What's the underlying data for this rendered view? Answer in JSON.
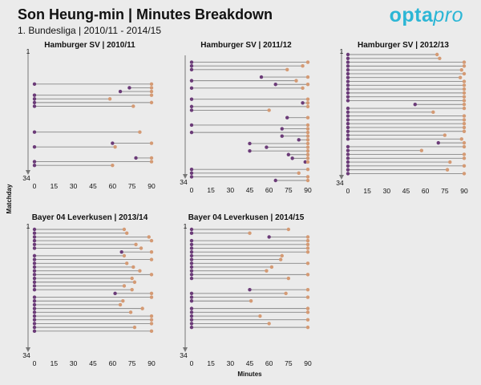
{
  "header": {
    "title": "Son Heung-min | Minutes Breakdown",
    "subtitle": "1. Bundesliga | 2010/11 - 2014/15",
    "brand_opta": "opta",
    "brand_pro": "pro"
  },
  "colors": {
    "background": "#ebebeb",
    "start_dot": "#6b3b78",
    "end_dot": "#d49a74",
    "line": "#888888",
    "brand": "#2cb6d5"
  },
  "chart_data": [
    {
      "type": "dumbbell",
      "title": "Hamburger SV | 2010/11",
      "xlabel": "",
      "ylabel": "Matchday",
      "xlim": [
        0,
        90
      ],
      "xticks": [
        0,
        15,
        30,
        45,
        60,
        75,
        90
      ],
      "ylim": [
        1,
        34
      ],
      "ytick_labels": [
        "1",
        "34"
      ],
      "series": [
        {
          "matchday": 9,
          "start": 0,
          "end": 90
        },
        {
          "matchday": 10,
          "start": 73,
          "end": 90
        },
        {
          "matchday": 11,
          "start": 66,
          "end": 90
        },
        {
          "matchday": 12,
          "start": 0,
          "end": 90
        },
        {
          "matchday": 13,
          "start": 0,
          "end": 58
        },
        {
          "matchday": 14,
          "start": 0,
          "end": 90
        },
        {
          "matchday": 15,
          "start": 0,
          "end": 76
        },
        {
          "matchday": 22,
          "start": 0,
          "end": 81
        },
        {
          "matchday": 25,
          "start": 60,
          "end": 90
        },
        {
          "matchday": 26,
          "start": 0,
          "end": 62
        },
        {
          "matchday": 29,
          "start": 78,
          "end": 90
        },
        {
          "matchday": 30,
          "start": 0,
          "end": 90
        },
        {
          "matchday": 31,
          "start": 0,
          "end": 60
        }
      ]
    },
    {
      "type": "dumbbell",
      "title": "Hamburger SV | 2011/12",
      "xlabel": "",
      "ylabel": "",
      "xlim": [
        0,
        90
      ],
      "xticks": [
        0,
        15,
        30,
        45,
        60,
        75,
        90
      ],
      "ylim": [
        1,
        34
      ],
      "ytick_labels": [
        "34"
      ],
      "series": [
        {
          "matchday": 2,
          "start": 0,
          "end": 90
        },
        {
          "matchday": 3,
          "start": 0,
          "end": 86
        },
        {
          "matchday": 4,
          "start": 0,
          "end": 74
        },
        {
          "matchday": 6,
          "start": 54,
          "end": 90
        },
        {
          "matchday": 7,
          "start": 0,
          "end": 81
        },
        {
          "matchday": 8,
          "start": 65,
          "end": 90
        },
        {
          "matchday": 9,
          "start": 0,
          "end": 86
        },
        {
          "matchday": 12,
          "start": 0,
          "end": 90
        },
        {
          "matchday": 13,
          "start": 86,
          "end": 90
        },
        {
          "matchday": 14,
          "start": 0,
          "end": 90
        },
        {
          "matchday": 15,
          "start": 0,
          "end": 60
        },
        {
          "matchday": 17,
          "start": 74,
          "end": 90
        },
        {
          "matchday": 19,
          "start": 0,
          "end": 90
        },
        {
          "matchday": 20,
          "start": 70,
          "end": 90
        },
        {
          "matchday": 21,
          "start": 0,
          "end": 90
        },
        {
          "matchday": 22,
          "start": 70,
          "end": 90
        },
        {
          "matchday": 23,
          "start": 83,
          "end": 90
        },
        {
          "matchday": 24,
          "start": 45,
          "end": 90
        },
        {
          "matchday": 25,
          "start": 58,
          "end": 90
        },
        {
          "matchday": 26,
          "start": 45,
          "end": 90
        },
        {
          "matchday": 27,
          "start": 75,
          "end": 90
        },
        {
          "matchday": 28,
          "start": 78,
          "end": 90
        },
        {
          "matchday": 29,
          "start": 88,
          "end": 90
        },
        {
          "matchday": 31,
          "start": 0,
          "end": 90
        },
        {
          "matchday": 32,
          "start": 0,
          "end": 83
        },
        {
          "matchday": 33,
          "start": 0,
          "end": 90
        },
        {
          "matchday": 34,
          "start": 65,
          "end": 90
        }
      ]
    },
    {
      "type": "dumbbell",
      "title": "Hamburger SV | 2012/13",
      "xlabel": "",
      "ylabel": "",
      "xlim": [
        0,
        90
      ],
      "xticks": [
        0,
        15,
        30,
        45,
        60,
        75,
        90
      ],
      "ylim": [
        1,
        34
      ],
      "ytick_labels": [
        "1",
        "34"
      ],
      "series": [
        {
          "matchday": 1,
          "start": 0,
          "end": 69
        },
        {
          "matchday": 2,
          "start": 0,
          "end": 71
        },
        {
          "matchday": 3,
          "start": 0,
          "end": 90
        },
        {
          "matchday": 4,
          "start": 0,
          "end": 90
        },
        {
          "matchday": 5,
          "start": 0,
          "end": 88
        },
        {
          "matchday": 6,
          "start": 0,
          "end": 90
        },
        {
          "matchday": 7,
          "start": 0,
          "end": 87
        },
        {
          "matchday": 8,
          "start": 0,
          "end": 90
        },
        {
          "matchday": 9,
          "start": 0,
          "end": 90
        },
        {
          "matchday": 10,
          "start": 0,
          "end": 90
        },
        {
          "matchday": 11,
          "start": 0,
          "end": 90
        },
        {
          "matchday": 12,
          "start": 0,
          "end": 90
        },
        {
          "matchday": 13,
          "start": 0,
          "end": 90
        },
        {
          "matchday": 14,
          "start": 52,
          "end": 90
        },
        {
          "matchday": 15,
          "start": 0,
          "end": 90
        },
        {
          "matchday": 16,
          "start": 0,
          "end": 66
        },
        {
          "matchday": 17,
          "start": 0,
          "end": 90
        },
        {
          "matchday": 18,
          "start": 0,
          "end": 90
        },
        {
          "matchday": 19,
          "start": 0,
          "end": 90
        },
        {
          "matchday": 20,
          "start": 0,
          "end": 90
        },
        {
          "matchday": 21,
          "start": 0,
          "end": 90
        },
        {
          "matchday": 22,
          "start": 0,
          "end": 75
        },
        {
          "matchday": 23,
          "start": 0,
          "end": 88
        },
        {
          "matchday": 24,
          "start": 70,
          "end": 90
        },
        {
          "matchday": 25,
          "start": 0,
          "end": 90
        },
        {
          "matchday": 26,
          "start": 0,
          "end": 57
        },
        {
          "matchday": 27,
          "start": 0,
          "end": 90
        },
        {
          "matchday": 28,
          "start": 0,
          "end": 90
        },
        {
          "matchday": 29,
          "start": 0,
          "end": 79
        },
        {
          "matchday": 30,
          "start": 0,
          "end": 90
        },
        {
          "matchday": 31,
          "start": 0,
          "end": 77
        },
        {
          "matchday": 32,
          "start": 0,
          "end": 90
        }
      ]
    },
    {
      "type": "dumbbell",
      "title": "Bayer 04 Leverkusen | 2013/14",
      "xlabel": "",
      "ylabel": "",
      "xlim": [
        0,
        90
      ],
      "xticks": [
        0,
        15,
        30,
        45,
        60,
        75,
        90
      ],
      "ylim": [
        1,
        34
      ],
      "ytick_labels": [
        "1",
        "34"
      ],
      "series": [
        {
          "matchday": 1,
          "start": 0,
          "end": 69
        },
        {
          "matchday": 2,
          "start": 0,
          "end": 71
        },
        {
          "matchday": 3,
          "start": 0,
          "end": 88
        },
        {
          "matchday": 4,
          "start": 0,
          "end": 90
        },
        {
          "matchday": 5,
          "start": 0,
          "end": 78
        },
        {
          "matchday": 6,
          "start": 0,
          "end": 82
        },
        {
          "matchday": 7,
          "start": 67,
          "end": 90
        },
        {
          "matchday": 8,
          "start": 0,
          "end": 69
        },
        {
          "matchday": 9,
          "start": 0,
          "end": 90
        },
        {
          "matchday": 10,
          "start": 0,
          "end": 71
        },
        {
          "matchday": 11,
          "start": 0,
          "end": 76
        },
        {
          "matchday": 12,
          "start": 0,
          "end": 81
        },
        {
          "matchday": 13,
          "start": 0,
          "end": 90
        },
        {
          "matchday": 14,
          "start": 0,
          "end": 75
        },
        {
          "matchday": 15,
          "start": 0,
          "end": 77
        },
        {
          "matchday": 16,
          "start": 0,
          "end": 69
        },
        {
          "matchday": 17,
          "start": 0,
          "end": 75
        },
        {
          "matchday": 18,
          "start": 62,
          "end": 90
        },
        {
          "matchday": 19,
          "start": 0,
          "end": 90
        },
        {
          "matchday": 20,
          "start": 0,
          "end": 68
        },
        {
          "matchday": 21,
          "start": 0,
          "end": 66
        },
        {
          "matchday": 22,
          "start": 0,
          "end": 83
        },
        {
          "matchday": 23,
          "start": 0,
          "end": 74
        },
        {
          "matchday": 24,
          "start": 0,
          "end": 90
        },
        {
          "matchday": 25,
          "start": 0,
          "end": 90
        },
        {
          "matchday": 26,
          "start": 0,
          "end": 90
        },
        {
          "matchday": 27,
          "start": 0,
          "end": 77
        },
        {
          "matchday": 28,
          "start": 0,
          "end": 90
        }
      ]
    },
    {
      "type": "dumbbell",
      "title": "Bayer 04 Leverkusen | 2014/15",
      "xlabel": "Minutes",
      "ylabel": "",
      "xlim": [
        0,
        90
      ],
      "xticks": [
        0,
        15,
        30,
        45,
        60,
        75,
        90
      ],
      "ylim": [
        1,
        34
      ],
      "ytick_labels": [
        "1",
        "34"
      ],
      "series": [
        {
          "matchday": 1,
          "start": 0,
          "end": 75
        },
        {
          "matchday": 2,
          "start": 0,
          "end": 45
        },
        {
          "matchday": 3,
          "start": 60,
          "end": 90
        },
        {
          "matchday": 4,
          "start": 0,
          "end": 90
        },
        {
          "matchday": 5,
          "start": 0,
          "end": 90
        },
        {
          "matchday": 6,
          "start": 0,
          "end": 90
        },
        {
          "matchday": 7,
          "start": 0,
          "end": 90
        },
        {
          "matchday": 8,
          "start": 0,
          "end": 70
        },
        {
          "matchday": 9,
          "start": 0,
          "end": 69
        },
        {
          "matchday": 10,
          "start": 0,
          "end": 90
        },
        {
          "matchday": 11,
          "start": 0,
          "end": 62
        },
        {
          "matchday": 12,
          "start": 0,
          "end": 58
        },
        {
          "matchday": 13,
          "start": 0,
          "end": 90
        },
        {
          "matchday": 14,
          "start": 0,
          "end": 75
        },
        {
          "matchday": 17,
          "start": 45,
          "end": 90
        },
        {
          "matchday": 18,
          "start": 0,
          "end": 73
        },
        {
          "matchday": 19,
          "start": 0,
          "end": 90
        },
        {
          "matchday": 20,
          "start": 0,
          "end": 46
        },
        {
          "matchday": 22,
          "start": 0,
          "end": 90
        },
        {
          "matchday": 23,
          "start": 0,
          "end": 90
        },
        {
          "matchday": 24,
          "start": 0,
          "end": 53
        },
        {
          "matchday": 25,
          "start": 0,
          "end": 90
        },
        {
          "matchday": 26,
          "start": 0,
          "end": 60
        },
        {
          "matchday": 27,
          "start": 0,
          "end": 90
        }
      ]
    }
  ]
}
